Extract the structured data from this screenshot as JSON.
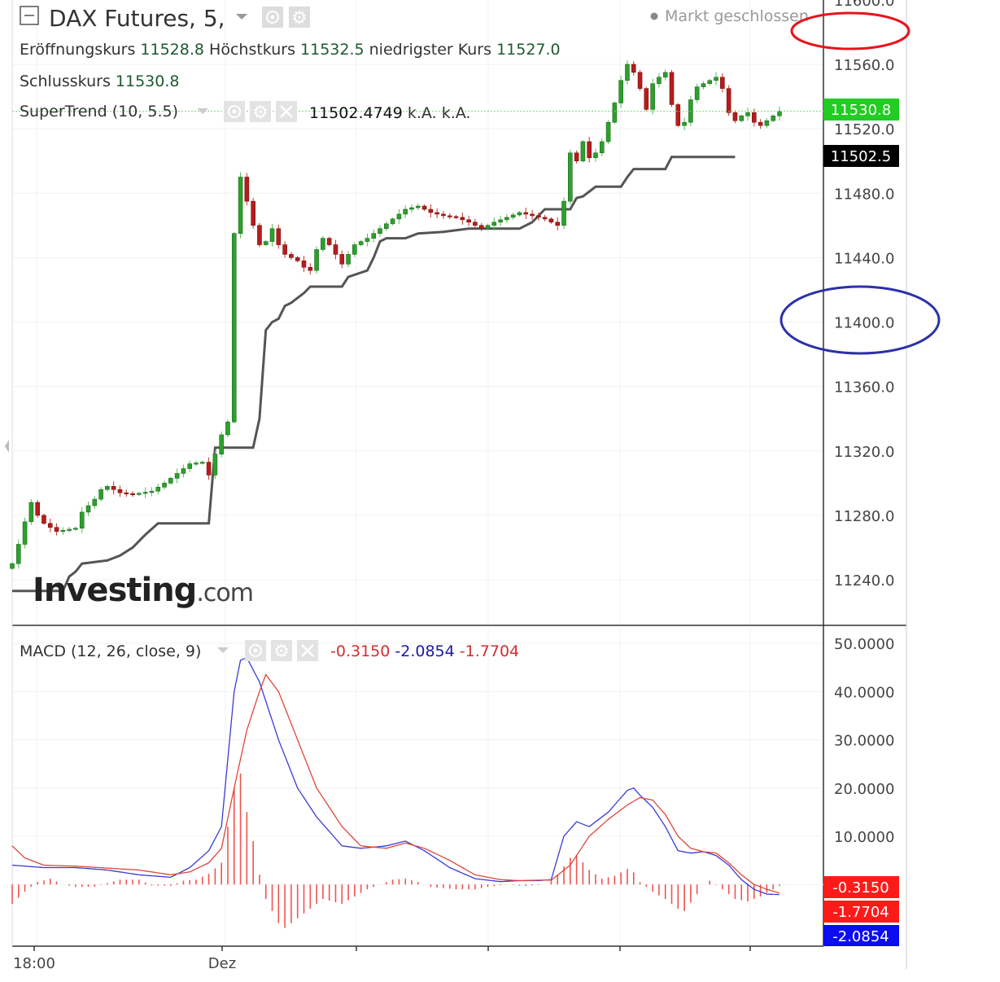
{
  "header": {
    "symbol_title": "DAX Futures, 5,",
    "market_status": "Markt geschlossen",
    "ohlc": {
      "open_label": "Eröffnungskurs",
      "open_value": "11528.8",
      "high_label": "Höchstkurs",
      "high_value": "11532.5",
      "low_label": "niedrigster Kurs",
      "low_value": "11527.0",
      "close_label": "Schlusskurs",
      "close_value": "11530.8"
    },
    "supertrend_legend": {
      "label": "SuperTrend (10, 5.5)",
      "value": "11502.4749",
      "na1": "k.A.",
      "na2": "k.A."
    }
  },
  "macd_legend": {
    "label": "MACD (12, 26, close, 9)",
    "hist_value": "-0.3150",
    "macd_value": "-2.0854",
    "signal_value": "-1.7704"
  },
  "watermark": {
    "brand": "Investing",
    "suffix": ".com"
  },
  "price_tags": {
    "last_price": "11530.8",
    "supertrend": "11502.5",
    "macd_hist": "-0.3150",
    "macd_signal": "-1.7704",
    "macd_line": "-2.0854"
  },
  "colors": {
    "up": "#2ca02c",
    "down": "#b71c1c",
    "supertrend": "#555555",
    "macd_line": "#3b3bd6",
    "signal_line": "#e0453c",
    "histogram": "#ef5350",
    "last_price_tag": "#22cc22",
    "annotation_red": "#e8131a",
    "annotation_blue": "#2d31a8"
  },
  "chart_data": [
    {
      "type": "candlestick",
      "title": "DAX Futures, 5,",
      "y_ticks": [
        11240.0,
        11280.0,
        11320.0,
        11360.0,
        11400.0,
        11440.0,
        11480.0,
        11520.0,
        11560.0
      ],
      "ylim": [
        11207,
        11600
      ],
      "x_ticks": [
        "18:00",
        "Dez"
      ],
      "close_path": [
        [
          0,
          11250
        ],
        [
          2,
          11262
        ],
        [
          4,
          11276
        ],
        [
          6,
          11288
        ],
        [
          8,
          11280
        ],
        [
          10,
          11275
        ],
        [
          14,
          11270
        ],
        [
          20,
          11272
        ],
        [
          22,
          11282
        ],
        [
          26,
          11290
        ],
        [
          28,
          11296
        ],
        [
          30,
          11298
        ],
        [
          34,
          11294
        ],
        [
          38,
          11293
        ],
        [
          44,
          11295
        ],
        [
          48,
          11300
        ],
        [
          52,
          11306
        ],
        [
          56,
          11312
        ],
        [
          60,
          11313
        ],
        [
          62,
          11305
        ],
        [
          64,
          11318
        ],
        [
          66,
          11330
        ],
        [
          68,
          11338
        ],
        [
          69,
          11510
        ],
        [
          70,
          11455
        ],
        [
          72,
          11490
        ],
        [
          74,
          11475
        ],
        [
          76,
          11460
        ],
        [
          78,
          11448
        ],
        [
          80,
          11450
        ],
        [
          82,
          11458
        ],
        [
          84,
          11448
        ],
        [
          86,
          11442
        ],
        [
          88,
          11440
        ],
        [
          90,
          11438
        ],
        [
          92,
          11434
        ],
        [
          94,
          11432
        ],
        [
          96,
          11445
        ],
        [
          98,
          11452
        ],
        [
          100,
          11448
        ],
        [
          102,
          11442
        ],
        [
          104,
          11436
        ],
        [
          106,
          11442
        ],
        [
          108,
          11448
        ],
        [
          112,
          11452
        ],
        [
          116,
          11458
        ],
        [
          120,
          11464
        ],
        [
          124,
          11470
        ],
        [
          128,
          11472
        ],
        [
          132,
          11468
        ],
        [
          136,
          11466
        ],
        [
          140,
          11465
        ],
        [
          144,
          11462
        ],
        [
          148,
          11458
        ],
        [
          152,
          11462
        ],
        [
          156,
          11465
        ],
        [
          160,
          11468
        ],
        [
          164,
          11466
        ],
        [
          168,
          11464
        ],
        [
          172,
          11460
        ],
        [
          174,
          11475
        ],
        [
          176,
          11505
        ],
        [
          178,
          11500
        ],
        [
          180,
          11512
        ],
        [
          182,
          11502
        ],
        [
          184,
          11505
        ],
        [
          186,
          11512
        ],
        [
          188,
          11524
        ],
        [
          190,
          11536
        ],
        [
          192,
          11550
        ],
        [
          194,
          11560
        ],
        [
          196,
          11555
        ],
        [
          198,
          11545
        ],
        [
          200,
          11532
        ],
        [
          202,
          11548
        ],
        [
          204,
          11552
        ],
        [
          206,
          11555
        ],
        [
          208,
          11535
        ],
        [
          210,
          11522
        ],
        [
          212,
          11524
        ],
        [
          214,
          11538
        ],
        [
          216,
          11546
        ],
        [
          218,
          11548
        ],
        [
          220,
          11550
        ],
        [
          222,
          11552
        ],
        [
          224,
          11545
        ],
        [
          226,
          11530
        ],
        [
          228,
          11525
        ],
        [
          230,
          11528
        ],
        [
          232,
          11530
        ],
        [
          234,
          11524
        ],
        [
          236,
          11522
        ],
        [
          238,
          11525
        ],
        [
          240,
          11528
        ],
        [
          242,
          11530.8
        ]
      ],
      "supertrend_steps": [
        [
          0,
          11233
        ],
        [
          16,
          11233
        ],
        [
          18,
          11242
        ],
        [
          20,
          11245
        ],
        [
          22,
          11250
        ],
        [
          30,
          11252
        ],
        [
          34,
          11255
        ],
        [
          38,
          11260
        ],
        [
          42,
          11268
        ],
        [
          46,
          11275
        ],
        [
          62,
          11275
        ],
        [
          64,
          11322
        ],
        [
          76,
          11322
        ],
        [
          78,
          11340
        ],
        [
          80,
          11395
        ],
        [
          82,
          11400
        ],
        [
          84,
          11402
        ],
        [
          86,
          11410
        ],
        [
          88,
          11412
        ],
        [
          92,
          11418
        ],
        [
          94,
          11422
        ],
        [
          104,
          11422
        ],
        [
          106,
          11428
        ],
        [
          112,
          11432
        ],
        [
          114,
          11440
        ],
        [
          116,
          11450
        ],
        [
          118,
          11452
        ],
        [
          124,
          11452
        ],
        [
          128,
          11455
        ],
        [
          136,
          11456
        ],
        [
          144,
          11458
        ],
        [
          160,
          11458
        ],
        [
          164,
          11462
        ],
        [
          168,
          11470
        ],
        [
          176,
          11470
        ],
        [
          178,
          11477
        ],
        [
          180,
          11478
        ],
        [
          184,
          11484
        ],
        [
          192,
          11484
        ],
        [
          194,
          11490
        ],
        [
          196,
          11495
        ],
        [
          206,
          11495
        ],
        [
          208,
          11502.5
        ],
        [
          228,
          11502.5
        ]
      ],
      "last_price": 11530.8,
      "supertrend_last": 11502.5
    },
    {
      "type": "line",
      "title": "MACD (12, 26, close, 9)",
      "y_ticks": [
        10.0,
        20.0,
        30.0,
        40.0,
        50.0
      ],
      "ylim": [
        -8.4,
        52.7
      ],
      "series": [
        {
          "name": "MACD",
          "points": [
            [
              0,
              4.0
            ],
            [
              10,
              3.5
            ],
            [
              20,
              3.5
            ],
            [
              30,
              3.0
            ],
            [
              40,
              2.0
            ],
            [
              50,
              1.5
            ],
            [
              56,
              3.5
            ],
            [
              62,
              7.0
            ],
            [
              66,
              12.0
            ],
            [
              70,
              40.0
            ],
            [
              72,
              46.5
            ],
            [
              74,
              47.0
            ],
            [
              78,
              42.0
            ],
            [
              84,
              30.0
            ],
            [
              90,
              20.0
            ],
            [
              96,
              14.0
            ],
            [
              104,
              8.0
            ],
            [
              110,
              7.5
            ],
            [
              118,
              8.0
            ],
            [
              124,
              9.0
            ],
            [
              130,
              7.0
            ],
            [
              138,
              3.5
            ],
            [
              146,
              1.2
            ],
            [
              154,
              0.6
            ],
            [
              160,
              0.8
            ],
            [
              166,
              0.8
            ],
            [
              170,
              1.0
            ],
            [
              174,
              10.0
            ],
            [
              178,
              13.0
            ],
            [
              182,
              12.0
            ],
            [
              188,
              15.0
            ],
            [
              194,
              19.5
            ],
            [
              196,
              20.0
            ],
            [
              198,
              18.5
            ],
            [
              202,
              16.0
            ],
            [
              206,
              12.0
            ],
            [
              210,
              7.0
            ],
            [
              214,
              6.5
            ],
            [
              218,
              6.8
            ],
            [
              222,
              6.0
            ],
            [
              226,
              4.0
            ],
            [
              230,
              1.0
            ],
            [
              234,
              -1.0
            ],
            [
              238,
              -2.0
            ],
            [
              242,
              -2.0854
            ]
          ]
        },
        {
          "name": "Signal",
          "points": [
            [
              0,
              8.0
            ],
            [
              4,
              5.5
            ],
            [
              10,
              4.0
            ],
            [
              20,
              3.8
            ],
            [
              30,
              3.4
            ],
            [
              40,
              3.0
            ],
            [
              50,
              2.0
            ],
            [
              56,
              2.6
            ],
            [
              62,
              4.5
            ],
            [
              66,
              7.5
            ],
            [
              70,
              20.0
            ],
            [
              74,
              32.0
            ],
            [
              78,
              40.0
            ],
            [
              80,
              43.5
            ],
            [
              84,
              40.0
            ],
            [
              90,
              30.0
            ],
            [
              96,
              20.0
            ],
            [
              104,
              12.0
            ],
            [
              110,
              8.0
            ],
            [
              118,
              7.5
            ],
            [
              124,
              8.6
            ],
            [
              130,
              7.5
            ],
            [
              138,
              5.0
            ],
            [
              146,
              2.0
            ],
            [
              154,
              1.0
            ],
            [
              160,
              0.8
            ],
            [
              166,
              0.9
            ],
            [
              170,
              0.9
            ],
            [
              176,
              4.0
            ],
            [
              182,
              10.0
            ],
            [
              188,
              13.5
            ],
            [
              194,
              16.5
            ],
            [
              198,
              18.0
            ],
            [
              202,
              17.5
            ],
            [
              206,
              14.5
            ],
            [
              210,
              10.0
            ],
            [
              214,
              7.5
            ],
            [
              218,
              6.8
            ],
            [
              222,
              6.5
            ],
            [
              226,
              4.5
            ],
            [
              230,
              2.0
            ],
            [
              234,
              0.0
            ],
            [
              238,
              -1.0
            ],
            [
              242,
              -1.7704
            ]
          ]
        }
      ],
      "histogram_points": [
        [
          0,
          -4.0
        ],
        [
          4,
          -1.5
        ],
        [
          8,
          0.5
        ],
        [
          12,
          1.2
        ],
        [
          16,
          0.0
        ],
        [
          20,
          -0.5
        ],
        [
          26,
          -0.5
        ],
        [
          30,
          0.3
        ],
        [
          34,
          1.0
        ],
        [
          40,
          1.0
        ],
        [
          44,
          -0.2
        ],
        [
          50,
          -0.3
        ],
        [
          54,
          0.8
        ],
        [
          58,
          1.0
        ],
        [
          62,
          2.2
        ],
        [
          66,
          4.5
        ],
        [
          68,
          12.0
        ],
        [
          70,
          20.0
        ],
        [
          72,
          23.0
        ],
        [
          74,
          15.0
        ],
        [
          76,
          9.0
        ],
        [
          78,
          2.0
        ],
        [
          80,
          -3.0
        ],
        [
          84,
          -8.0
        ],
        [
          86,
          -9.0
        ],
        [
          90,
          -7.0
        ],
        [
          94,
          -5.0
        ],
        [
          98,
          -3.0
        ],
        [
          104,
          -4.0
        ],
        [
          108,
          -2.5
        ],
        [
          112,
          -1.0
        ],
        [
          116,
          0.0
        ],
        [
          120,
          1.0
        ],
        [
          124,
          1.2
        ],
        [
          128,
          0.5
        ],
        [
          132,
          -0.5
        ],
        [
          140,
          -1.0
        ],
        [
          146,
          -1.0
        ],
        [
          150,
          -0.5
        ],
        [
          156,
          0.0
        ],
        [
          162,
          -0.3
        ],
        [
          168,
          0.0
        ],
        [
          172,
          2.0
        ],
        [
          176,
          5.5
        ],
        [
          178,
          6.2
        ],
        [
          182,
          3.0
        ],
        [
          186,
          1.2
        ],
        [
          190,
          1.8
        ],
        [
          194,
          3.2
        ],
        [
          196,
          2.5
        ],
        [
          198,
          0.5
        ],
        [
          202,
          -1.5
        ],
        [
          206,
          -3.0
        ],
        [
          210,
          -5.0
        ],
        [
          212,
          -5.5
        ],
        [
          216,
          -2.0
        ],
        [
          218,
          0.0
        ],
        [
          220,
          0.8
        ],
        [
          224,
          -1.0
        ],
        [
          228,
          -3.0
        ],
        [
          232,
          -3.5
        ],
        [
          236,
          -2.5
        ],
        [
          240,
          -1.0
        ],
        [
          242,
          -0.315
        ]
      ],
      "last_values": {
        "histogram": -0.315,
        "macd": -2.0854,
        "signal": -1.7704
      }
    }
  ]
}
